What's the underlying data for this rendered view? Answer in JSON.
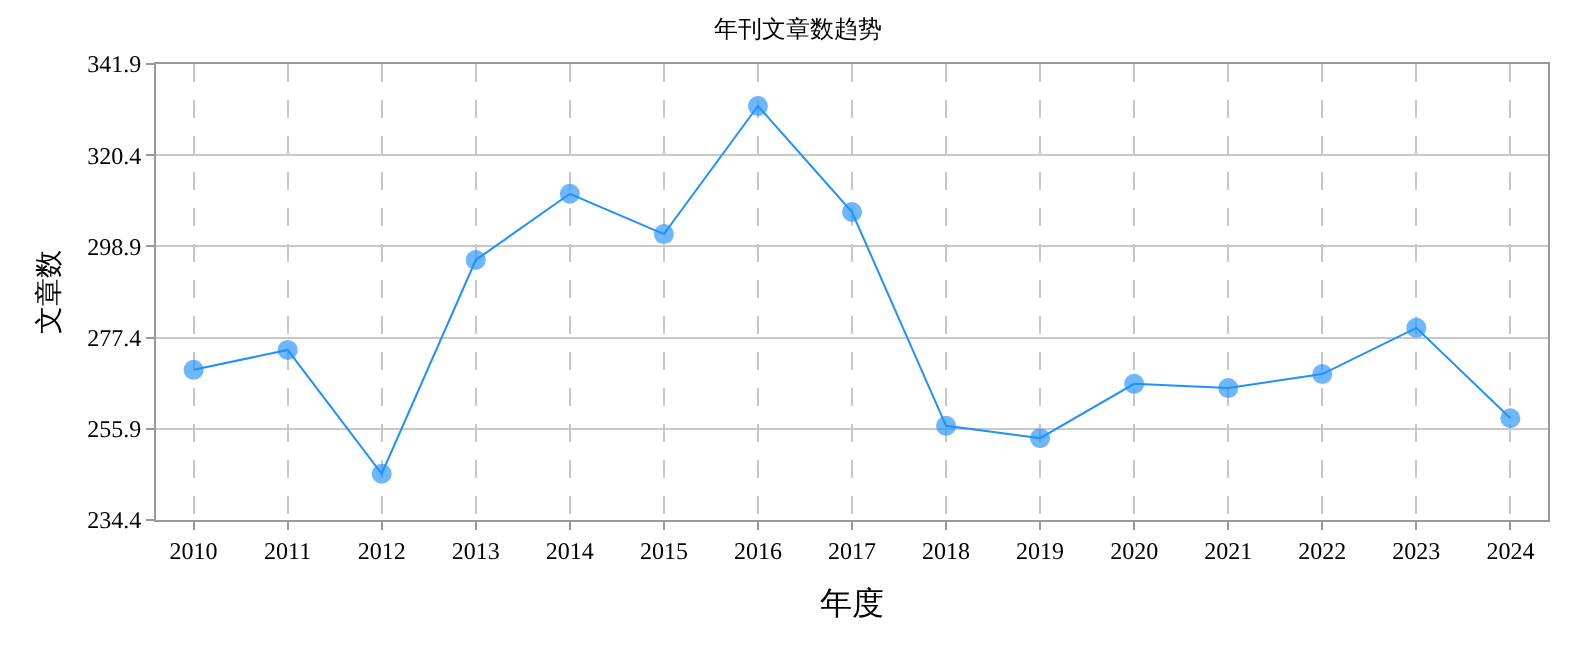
{
  "chart_data": {
    "type": "line",
    "title": "年刊文章数趋势",
    "xlabel": "年度",
    "ylabel": "文章数",
    "categories": [
      "2010",
      "2011",
      "2012",
      "2013",
      "2014",
      "2015",
      "2016",
      "2017",
      "2018",
      "2019",
      "2020",
      "2021",
      "2022",
      "2023",
      "2024"
    ],
    "series": [
      {
        "color": "#1e90ff",
        "values": [
          269.8,
          274.5,
          245.3,
          295.7,
          311.3,
          301.8,
          332.0,
          307.0,
          256.6,
          253.7,
          266.5,
          265.5,
          268.8,
          279.7,
          258.4
        ]
      }
    ],
    "ylim": [
      234.4,
      341.9
    ],
    "yticks": [
      234.4,
      255.9,
      277.4,
      298.9,
      320.4,
      341.9
    ],
    "grid": true,
    "marker": "circle",
    "line_style": "solid"
  }
}
